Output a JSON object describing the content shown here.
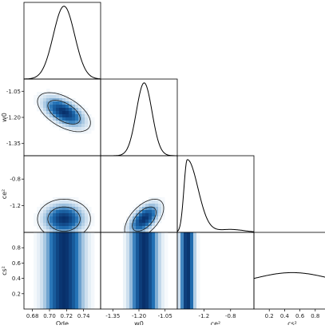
{
  "colors": {
    "frame": "#000000",
    "line": "#000000",
    "density_low": "#ffffff",
    "density_high": "#08306b",
    "density_mid": "#2171b5"
  },
  "chart_data": {
    "type": "corner",
    "parameters": [
      {
        "key": "omega_de",
        "label": "Ω_de",
        "range": [
          0.67,
          0.76
        ],
        "ticks": [
          0.68,
          0.7,
          0.72,
          0.74
        ],
        "tick_labels": [
          "0.68",
          "0.70",
          "0.72",
          "0.74"
        ],
        "marginal": {
          "shape": "gaussian",
          "mean": 0.717,
          "sd": 0.0125
        }
      },
      {
        "key": "w0",
        "label": "w_0",
        "range": [
          -1.42,
          -0.98
        ],
        "ticks": [
          -1.35,
          -1.2,
          -1.05
        ],
        "tick_labels": [
          "-1.35",
          "-1.20",
          "-1.05"
        ],
        "marginal": {
          "shape": "gaussian",
          "mean": -1.17,
          "sd": 0.045
        }
      },
      {
        "key": "ce2",
        "label": "c_e^2",
        "range": [
          -1.6,
          -0.45
        ],
        "ticks": [
          -1.2,
          -0.8
        ],
        "tick_labels": [
          "-1.2",
          "-0.8"
        ],
        "marginal": {
          "shape": "skewed",
          "peak": -1.45
        }
      },
      {
        "key": "cs2",
        "label": "c_s^2",
        "range": [
          0.0,
          1.0
        ],
        "ticks": [
          0.2,
          0.4,
          0.6,
          0.8
        ],
        "tick_labels": [
          "0.2",
          "0.4",
          "0.6",
          "0.8"
        ],
        "marginal": {
          "shape": "flat"
        }
      }
    ],
    "panels": [
      {
        "row": 1,
        "col": 0,
        "type": "density",
        "cx": 0.717,
        "cy": -1.17,
        "sx": 0.0125,
        "sy": 0.045,
        "rho": -0.55
      },
      {
        "row": 2,
        "col": 0,
        "type": "density",
        "cx": 0.717,
        "cy": -1.4,
        "sx": 0.0125,
        "sy": 0.12,
        "rho": 0.0
      },
      {
        "row": 2,
        "col": 1,
        "type": "density",
        "cx": -1.17,
        "cy": -1.4,
        "sx": 0.045,
        "sy": 0.12,
        "rho": 0.55
      },
      {
        "row": 3,
        "col": 0,
        "type": "band",
        "cx": 0.717,
        "sx": 0.0125
      },
      {
        "row": 3,
        "col": 1,
        "type": "band",
        "cx": -1.17,
        "sx": 0.045
      },
      {
        "row": 3,
        "col": 2,
        "type": "band",
        "cx": -1.45,
        "sx": 0.06
      }
    ]
  }
}
